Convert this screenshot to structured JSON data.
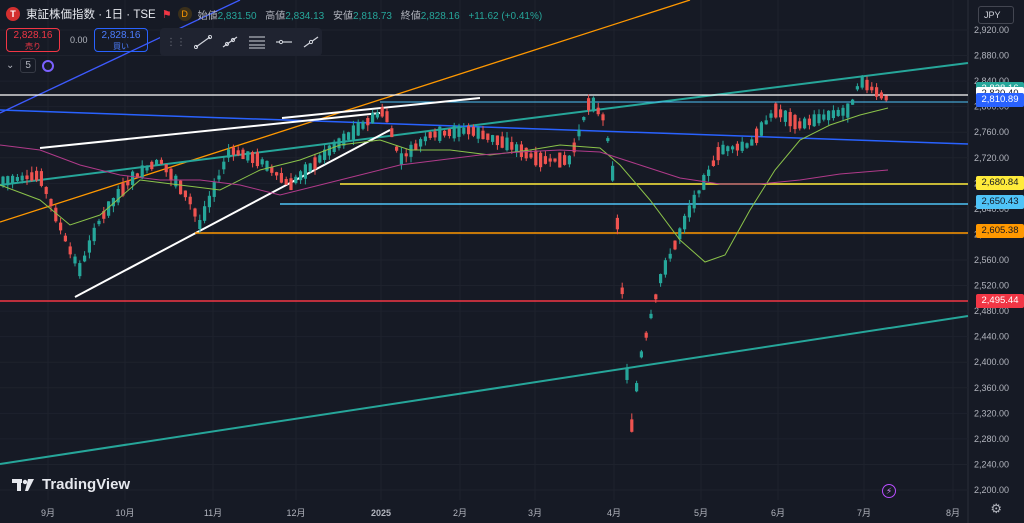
{
  "header": {
    "logo": "T",
    "title": "東証株価指数 · 1日 · TSE",
    "flag_icon": "flag-icon",
    "d_badge": "D",
    "ohlc": {
      "open_label": "始値",
      "open": "2,831.50",
      "high_label": "高値",
      "high": "2,834.13",
      "low_label": "安値",
      "low": "2,818.73",
      "close_label": "終値",
      "close": "2,828.16",
      "change": "+11.62 (+0.41%)"
    }
  },
  "trade": {
    "sell_price": "2,828.16",
    "sell_label": "売り",
    "spread": "0.00",
    "buy_price": "2,828.16",
    "buy_label": "買い"
  },
  "indicator_row": {
    "count": "5"
  },
  "currency": "JPY",
  "brand": {
    "name": "TradingView"
  },
  "colors": {
    "up": "#26a69a",
    "down": "#ef5350",
    "bg": "#161a25"
  },
  "chart_data": {
    "type": "candlestick",
    "y_ticks": [
      "2,920.00",
      "2,880.00",
      "2,840.00",
      "2,800.00",
      "2,760.00",
      "2,720.00",
      "2,680.00",
      "2,640.00",
      "2,600.00",
      "2,560.00",
      "2,520.00",
      "2,480.00",
      "2,440.00",
      "2,400.00",
      "2,360.00",
      "2,320.00",
      "2,280.00",
      "2,240.00",
      "2,200.00"
    ],
    "ylim": [
      2190,
      2940
    ],
    "x_ticks": [
      "9月",
      "10月",
      "11月",
      "12月",
      "2025",
      "2月",
      "3月",
      "4月",
      "5月",
      "6月",
      "7月",
      "8月"
    ],
    "price_labels": [
      {
        "value": "2,828.16",
        "color": "#26a69a",
        "text_color": "#ffffff"
      },
      {
        "value": "2,820.40",
        "color": "#ffffff",
        "text_color": "#131722"
      },
      {
        "value": "2,810.89",
        "color": "#2962ff",
        "text_color": "#ffffff"
      },
      {
        "value": "2,680.84",
        "color": "#ffeb3b",
        "text_color": "#131722"
      },
      {
        "value": "2,650.43",
        "color": "#4fc3f7",
        "text_color": "#131722"
      },
      {
        "value": "2,605.38",
        "color": "#ff9800",
        "text_color": "#131722"
      },
      {
        "value": "2,495.44",
        "color": "#f23645",
        "text_color": "#ffffff"
      }
    ]
  }
}
